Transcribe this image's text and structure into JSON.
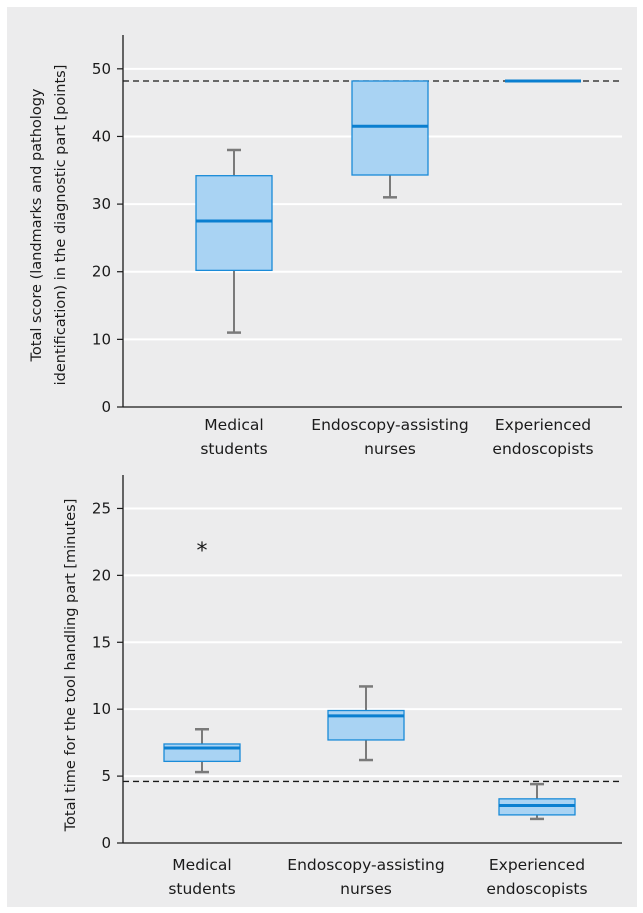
{
  "chart_data": [
    {
      "type": "box",
      "ylabel": "Total score (landmarks and pathology identification) in the diagnostic part [points]",
      "ylabel_lines": [
        "Total score (landmarks and pathology",
        "identification) in the diagnostic part [points]"
      ],
      "categories": [
        [
          "Medical",
          "students"
        ],
        [
          "Endoscopy-assisting",
          "nurses"
        ],
        [
          "Experienced",
          "endoscopists"
        ]
      ],
      "boxes": [
        {
          "min": 11,
          "q1": 20.2,
          "median": 27.5,
          "q3": 34.2,
          "max": 38
        },
        {
          "min": 31,
          "q1": 34.3,
          "median": 41.5,
          "q3": 48.2,
          "max": 48.2
        },
        {
          "min": 48.2,
          "q1": 48.2,
          "median": 48.2,
          "q3": 48.2,
          "max": 48.2
        }
      ],
      "outliers": [],
      "reference_line": 48.2,
      "ylim": [
        0,
        55
      ],
      "yticks": [
        0,
        10,
        20,
        30,
        40,
        50
      ],
      "grid": true
    },
    {
      "type": "box",
      "ylabel": "Total time for the tool handling part [minutes]",
      "ylabel_lines": [
        "Total time for the tool handling part [minutes]"
      ],
      "categories": [
        [
          "Medical",
          "students"
        ],
        [
          "Endoscopy-assisting",
          "nurses"
        ],
        [
          "Experienced",
          "endoscopists"
        ]
      ],
      "boxes": [
        {
          "min": 5.3,
          "q1": 6.1,
          "median": 7.1,
          "q3": 7.4,
          "max": 8.5
        },
        {
          "min": 6.2,
          "q1": 7.7,
          "median": 9.5,
          "q3": 9.9,
          "max": 11.7
        },
        {
          "min": 1.8,
          "q1": 2.1,
          "median": 2.8,
          "q3": 3.3,
          "max": 4.4
        }
      ],
      "outliers": [
        {
          "category": 0,
          "value": 22.2,
          "marker": "*"
        }
      ],
      "reference_line": 4.6,
      "ylim": [
        0,
        27.5
      ],
      "yticks": [
        0,
        5,
        10,
        15,
        20,
        25
      ],
      "grid": true
    }
  ],
  "colors": {
    "panel_bg": "#ececed",
    "box_fill": "#a9d3f3",
    "box_edge": "#1a8bd8",
    "median": "#0a7fd0",
    "whisker": "#7a7a7a",
    "grid": "#ffffff",
    "axis": "#1a1a1a",
    "reference_line": "#1a1a1a"
  }
}
